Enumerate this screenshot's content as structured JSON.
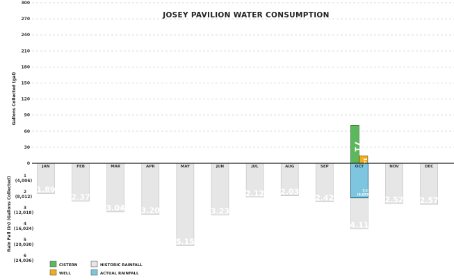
{
  "chart_data": {
    "type": "bar",
    "title": "JOSEY PAVILION WATER CONSUMPTION",
    "ylabel_top": "Gallons Collected (gal)",
    "ylabel_bottom": "Rain Fall (in) (Gallons Collected)",
    "top_axis": {
      "ylim": [
        0,
        300
      ],
      "ticks": [
        "300",
        "270",
        "240",
        "210",
        "180",
        "150",
        "120",
        "90",
        "60",
        "30",
        "0"
      ]
    },
    "bottom_axis": {
      "ylim": [
        0,
        6
      ],
      "ticks": [
        {
          "value": 1,
          "label": "1",
          "sub": "(4,006)"
        },
        {
          "value": 2,
          "label": "2",
          "sub": "(8,012)"
        },
        {
          "value": 3,
          "label": "3",
          "sub": "(12,018)"
        },
        {
          "value": 4,
          "label": "4",
          "sub": "(16,024)"
        },
        {
          "value": 5,
          "label": "5",
          "sub": "(20,030)"
        },
        {
          "value": 6,
          "label": "6",
          "sub": "(24,036)"
        }
      ]
    },
    "categories": [
      "JAN",
      "FEB",
      "MAR",
      "APR",
      "MAY",
      "JUN",
      "JUL",
      "AUG",
      "SEP",
      "OCT",
      "NOV",
      "DEC"
    ],
    "series": [
      {
        "name": "CISTERN",
        "color": "#5cb85c",
        "values": [
          null,
          null,
          null,
          null,
          null,
          null,
          null,
          null,
          null,
          71,
          null,
          null
        ],
        "labels": [
          "",
          "",
          "",
          "",
          "",
          "",
          "",
          "",
          "",
          "71",
          "",
          ""
        ]
      },
      {
        "name": "WELL",
        "color": "#f0ad1c",
        "values": [
          null,
          null,
          null,
          null,
          null,
          null,
          null,
          null,
          null,
          14,
          null,
          null
        ],
        "labels": [
          "",
          "",
          "",
          "",
          "",
          "",
          "",
          "",
          "",
          "14",
          "",
          ""
        ]
      },
      {
        "name": "HISTORIC RAINFALL",
        "color": "#e6e6e6",
        "values": [
          1.89,
          2.37,
          3.04,
          3.2,
          5.15,
          3.23,
          2.12,
          2.03,
          2.42,
          4.11,
          2.52,
          2.57
        ],
        "labels": [
          "1.89",
          "2.37",
          "3.04",
          "3.20",
          "5.15",
          "3.23",
          "2.12",
          "2.03",
          "2.42",
          "4.11",
          "2.52",
          "2.57"
        ]
      },
      {
        "name": "ACTUAL RAINFALL",
        "color": "#7ec6e0",
        "values": [
          null,
          null,
          null,
          null,
          null,
          null,
          null,
          null,
          null,
          2.16,
          null,
          null
        ],
        "labels": [
          "",
          "",
          "",
          "",
          "",
          "",
          "",
          "",
          "",
          "2.16",
          "",
          ""
        ],
        "sub_labels": [
          "",
          "",
          "",
          "",
          "",
          "",
          "",
          "",
          "",
          "(8,653)",
          "",
          ""
        ]
      }
    ],
    "legend": [
      "CISTERN",
      "WELL",
      "HISTORIC RAINFALL",
      "ACTUAL RAINFALL"
    ],
    "legend_position": "bottom-left",
    "grid": true
  }
}
